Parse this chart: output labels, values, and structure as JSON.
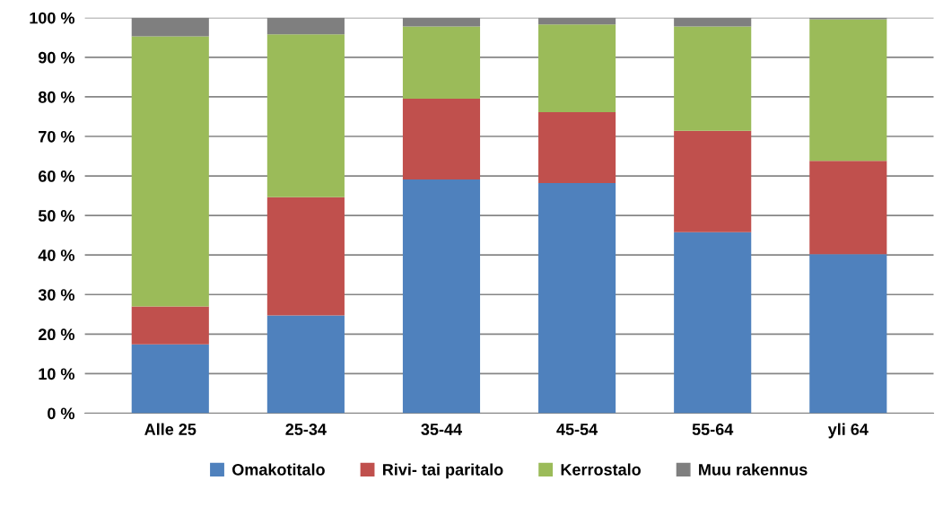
{
  "chart_data": {
    "type": "bar",
    "stacked": true,
    "categories": [
      "Alle 25",
      "25-34",
      "35-44",
      "45-54",
      "55-64",
      "yli 64"
    ],
    "series": [
      {
        "name": "Omakotitalo",
        "color": "#4f81bd",
        "values": [
          17.4,
          24.7,
          59.1,
          58.2,
          45.8,
          40.2
        ]
      },
      {
        "name": "Rivi- tai paritalo",
        "color": "#c0504d",
        "values": [
          9.6,
          29.9,
          20.4,
          17.9,
          25.6,
          23.6
        ]
      },
      {
        "name": "Kerrostalo",
        "color": "#9bbb59",
        "values": [
          68.3,
          41.2,
          18.3,
          22.2,
          26.4,
          35.8
        ]
      },
      {
        "name": "Muu rakennus",
        "color": "#7f7f7f",
        "values": [
          4.7,
          4.2,
          2.2,
          1.7,
          2.2,
          0.4
        ]
      }
    ],
    "ylim": [
      0,
      100
    ],
    "yticks": [
      {
        "value": 0,
        "label": "0 %"
      },
      {
        "value": 10,
        "label": "10 %"
      },
      {
        "value": 20,
        "label": "20 %"
      },
      {
        "value": 30,
        "label": "30 %"
      },
      {
        "value": 40,
        "label": "40 %"
      },
      {
        "value": 50,
        "label": "50 %"
      },
      {
        "value": 60,
        "label": "60 %"
      },
      {
        "value": 70,
        "label": "70 %"
      },
      {
        "value": 80,
        "label": "80 %"
      },
      {
        "value": 90,
        "label": "90 %"
      },
      {
        "value": 100,
        "label": "100 %"
      }
    ],
    "grid": "y",
    "legend": "bottom"
  }
}
